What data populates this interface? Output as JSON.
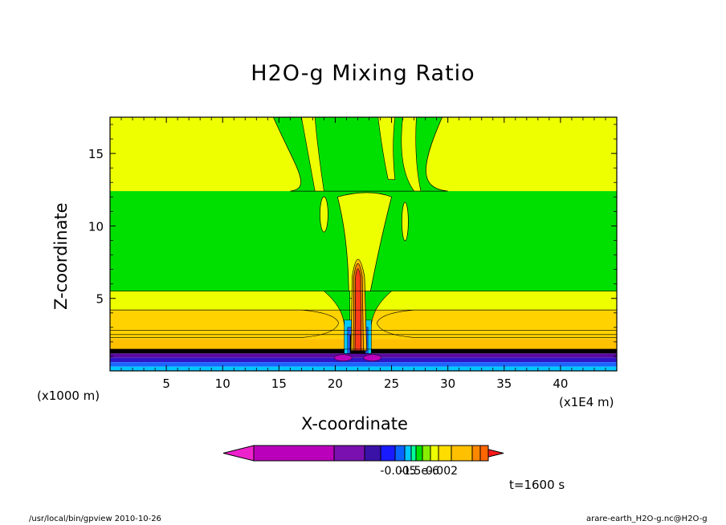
{
  "chart_data": {
    "type": "heatmap",
    "title": "H2O-g Mixing Ratio",
    "xlabel": "X-coordinate",
    "ylabel": "Z-coordinate",
    "x_unit_left": "(x1000 m)",
    "x_unit_right": "(x1E4 m)",
    "xlim": [
      0,
      45
    ],
    "ylim": [
      0,
      17.5
    ],
    "xticks": [
      5,
      10,
      15,
      20,
      25,
      30,
      35,
      40
    ],
    "yticks": [
      5,
      10,
      15
    ],
    "xtick_labels": [
      "5",
      "10",
      "15",
      "20",
      "25",
      "30",
      "35",
      "40"
    ],
    "ytick_labels": [
      "5",
      "10",
      "15"
    ],
    "background_bands": [
      {
        "z0": 12.4,
        "z1": 17.5,
        "color": "#eeff00"
      },
      {
        "z0": 5.5,
        "z1": 12.4,
        "color": "#00e000"
      },
      {
        "z0": 4.2,
        "z1": 5.5,
        "color": "#eeff00"
      },
      {
        "z0": 3.4,
        "z1": 4.2,
        "color": "#ffd200"
      },
      {
        "z0": 2.8,
        "z1": 3.4,
        "color": "#ffdd00"
      },
      {
        "z0": 2.2,
        "z1": 2.8,
        "color": "#ffd200"
      },
      {
        "z0": 1.5,
        "z1": 2.2,
        "color": "#ffc000"
      },
      {
        "z0": 1.2,
        "z1": 1.5,
        "color": "#000000"
      },
      {
        "z0": 0.9,
        "z1": 1.2,
        "color": "#5a0aa0"
      },
      {
        "z0": 0.6,
        "z1": 0.9,
        "color": "#3014c8"
      },
      {
        "z0": 0.3,
        "z1": 0.6,
        "color": "#1e64ff"
      },
      {
        "z0": 0.0,
        "z1": 0.3,
        "color": "#00c8ff"
      }
    ],
    "colorbar": {
      "colors": [
        "#ee22cc",
        "#bb00bb",
        "#7a10b0",
        "#3a12a8",
        "#1a1aff",
        "#0a64ff",
        "#00c8ff",
        "#00ff99",
        "#00e000",
        "#88ee00",
        "#eeff00",
        "#ffdd00",
        "#ffc000",
        "#ff8800",
        "#ff6600",
        "#ff1a1a"
      ],
      "labels": [
        "-0.005",
        "-1.5e-6",
        "0.002"
      ]
    },
    "time_label": "t=1600 s"
  },
  "footer": {
    "left": "/usr/local/bin/gpview   2010-10-26",
    "right": "arare-earth_H2O-g.nc@H2O-g"
  }
}
